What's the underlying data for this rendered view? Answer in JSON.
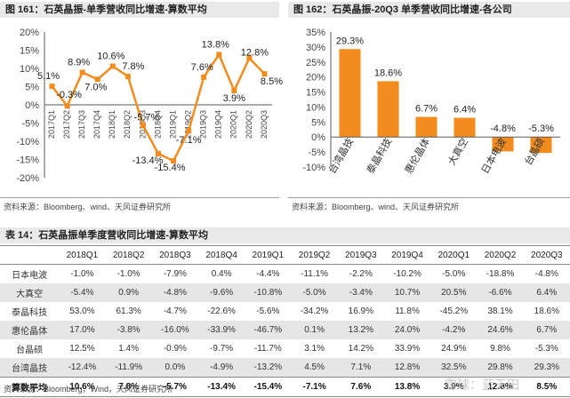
{
  "fig161": {
    "title": "图 161：石英晶振-单季营收同比增速-算数平均",
    "source": "资料来源：Bloomberg、wind、天风证券研究所"
  },
  "fig162": {
    "title": "图 162：石英晶振-20Q3 单季营收同比增速-各公司",
    "source": "资料来源：Bloomberg、wind、天风证券研究所"
  },
  "table14": {
    "title": "表 14：石英晶振单季度营收同比增速-算数平均",
    "source": "资料来源：Bloomberg，Wind，天风证券研究所",
    "headers": [
      "",
      "2018Q1",
      "2018Q2",
      "2018Q3",
      "2018Q4",
      "2019Q1",
      "2019Q2",
      "2019Q3",
      "2019Q4",
      "2020Q1",
      "2020Q2",
      "2020Q3"
    ],
    "rows": [
      {
        "name": "日本电波",
        "values": [
          "-1.0%",
          "-1.0%",
          "-7.9%",
          "0.4%",
          "-4.4%",
          "-11.1%",
          "-2.2%",
          "-10.2%",
          "-5.0%",
          "-18.8%",
          "-4.8%"
        ]
      },
      {
        "name": "大真空",
        "values": [
          "-5.4%",
          "0.9%",
          "-4.8%",
          "-9.6%",
          "-10.8%",
          "-5.0%",
          "-3.4%",
          "10.7%",
          "20.5%",
          "-6.6%",
          "6.4%"
        ]
      },
      {
        "name": "泰晶科技",
        "values": [
          "53.0%",
          "61.3%",
          "-4.7%",
          "-22.6%",
          "-5.6%",
          "-34.2%",
          "16.9%",
          "11.8%",
          "-45.2%",
          "38.1%",
          "18.6%"
        ]
      },
      {
        "name": "惠伦晶体",
        "values": [
          "17.0%",
          "-3.8%",
          "-16.0%",
          "-33.9%",
          "-46.7%",
          "0.1%",
          "13.2%",
          "24.0%",
          "-4.2%",
          "24.6%",
          "6.7%"
        ]
      },
      {
        "name": "台晶硕",
        "values": [
          "12.5%",
          "1.4%",
          "-0.9%",
          "-9.7%",
          "-11.7%",
          "3.1%",
          "14.2%",
          "33.9%",
          "24.9%",
          "9.8%",
          "-5.3%"
        ]
      },
      {
        "name": "台湾晶技",
        "values": [
          "-12.4%",
          "-11.9%",
          "0.0%",
          "-4.9%",
          "-13.2%",
          "4.5%",
          "7.1%",
          "12.8%",
          "32.5%",
          "29.8%",
          "29.3%"
        ]
      },
      {
        "name": "算数平均",
        "values": [
          "10.6%",
          "7.8%",
          "-5.7%",
          "-13.4%",
          "-15.4%",
          "-7.1%",
          "7.6%",
          "13.8%",
          "3.9%",
          "12.8%",
          "8.5%"
        ]
      }
    ]
  },
  "watermark": "雪球：蓝天田",
  "colors": {
    "accent": "#f28c1e",
    "grid": "#d9d9d9",
    "axis": "#595959",
    "shade": "#e6e6e6"
  },
  "chart_data": [
    {
      "type": "line",
      "title": "石英晶振-单季营收同比增速-算数平均",
      "x": [
        "2017Q1",
        "2017Q2",
        "2017Q3",
        "2017Q4",
        "2018Q1",
        "2018Q2",
        "2018Q3",
        "2018Q4",
        "2019Q1",
        "2019Q2",
        "2019Q3",
        "2019Q4",
        "2020Q1",
        "2020Q2",
        "2020Q3"
      ],
      "series": [
        {
          "values": [
            5.1,
            -0.3,
            8.9,
            7.0,
            10.6,
            7.8,
            -5.7,
            -13.4,
            -15.4,
            -7.1,
            7.6,
            13.8,
            3.9,
            12.8,
            8.5
          ],
          "labels": [
            "5.1%",
            "-0.3%",
            "8.9%",
            "7.0%",
            "10.6%",
            "7.8%",
            "-5.7%",
            "-13.4%",
            "-15.4%",
            "-7.1%",
            "7.6%",
            "13.8%",
            "3.9%",
            "12.8%",
            "8.5%"
          ]
        }
      ],
      "ylim": [
        -20,
        20
      ],
      "yticks": [
        "20%",
        "15%",
        "10%",
        "5%",
        "0%",
        "-5%",
        "-10%",
        "-15%",
        "-20%"
      ],
      "grid": false,
      "legend": "none"
    },
    {
      "type": "bar",
      "title": "石英晶振-20Q3 单季营收同比增速-各公司",
      "categories": [
        "台湾晶技",
        "泰晶科技",
        "惠伦晶体",
        "大真空",
        "日本电波",
        "台晶硕"
      ],
      "values": [
        29.3,
        18.6,
        6.7,
        6.4,
        -4.8,
        -5.3
      ],
      "labels": [
        "29.3%",
        "18.6%",
        "6.7%",
        "6.4%",
        "-4.8%",
        "-5.3%"
      ],
      "ylim": [
        -10,
        35
      ],
      "yticks": [
        "35%",
        "30%",
        "25%",
        "20%",
        "15%",
        "10%",
        "5%",
        "0%",
        "-5%",
        "-10%"
      ],
      "grid": false,
      "legend": "none"
    }
  ]
}
